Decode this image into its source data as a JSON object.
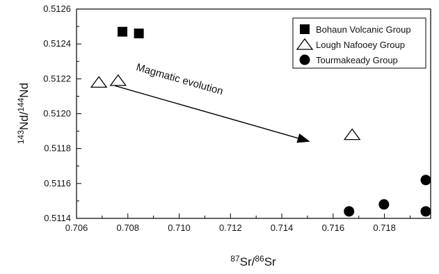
{
  "chart_data": {
    "type": "scatter",
    "xlabel": {
      "sup1": "87",
      "base1": "Sr",
      "sep": "/",
      "sup2": "86",
      "base2": "Sr"
    },
    "ylabel": {
      "sup1": "143",
      "base1": "Nd",
      "sep": "/",
      "sup2": "144",
      "base2": "Nd"
    },
    "xlim": [
      0.706,
      0.7198
    ],
    "ylim": [
      0.5114,
      0.5126
    ],
    "x_ticks": [
      "0.706",
      "0.708",
      "0.710",
      "0.712",
      "0.714",
      "0.716",
      "0.718"
    ],
    "y_ticks": [
      "0.5114",
      "0.5116",
      "0.5118",
      "0.5120",
      "0.5122",
      "0.5124",
      "0.5126"
    ],
    "grid": false,
    "legend_position": "top-right",
    "series": [
      {
        "name": "Bohaun Volcanic Group",
        "marker": "square",
        "color": "#000000",
        "points": [
          [
            0.70779,
            0.51247
          ],
          [
            0.70843,
            0.51246
          ]
        ]
      },
      {
        "name": "Lough Nafooey Group",
        "marker": "triangle-open",
        "color": "#000000",
        "points": [
          [
            0.70687,
            0.51218
          ],
          [
            0.70762,
            0.51219
          ],
          [
            0.71674,
            0.51188
          ]
        ]
      },
      {
        "name": "Tourmakeady Group",
        "marker": "circle",
        "color": "#000000",
        "points": [
          [
            0.71662,
            0.51144
          ],
          [
            0.71798,
            0.51148
          ],
          [
            0.71961,
            0.51162
          ],
          [
            0.71961,
            0.51144
          ]
        ]
      }
    ],
    "annotation": {
      "text": "Magmatic evolution",
      "arrow_from": [
        0.7075,
        0.51216
      ],
      "arrow_to": [
        0.7151,
        0.51184
      ]
    }
  }
}
